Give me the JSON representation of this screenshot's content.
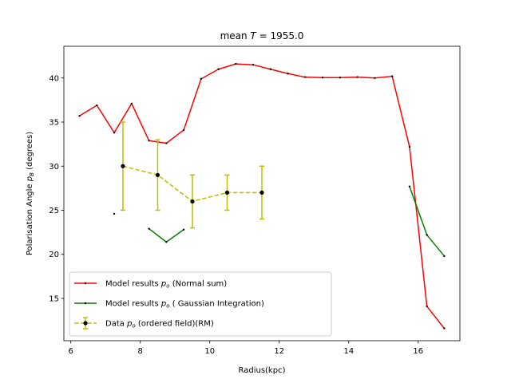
{
  "chart_data": {
    "type": "line",
    "title": "mean T =  1955.0",
    "title_parts": {
      "prefix": "mean ",
      "var": "T",
      "suffix": " =  1955.0"
    },
    "xlabel": "Radius(kpc)",
    "ylabel_parts": {
      "prefix": "Polarisation Angle ",
      "var": "p",
      "sub": "B",
      "suffix": " (degrees)"
    },
    "xlim": [
      5.8,
      17.2
    ],
    "ylim": [
      10.2,
      43.6
    ],
    "xticks": [
      6,
      8,
      10,
      12,
      14,
      16
    ],
    "yticks": [
      15,
      20,
      25,
      30,
      35,
      40
    ],
    "legend_position": "lower-left",
    "series": [
      {
        "name": "Model results p_o (Normal sum)",
        "legend_parts": {
          "prefix": "Model results ",
          "var": "p",
          "sub": "o",
          "suffix": " (Normal sum)"
        },
        "color": "#ff0000",
        "style": "solid",
        "segments": [
          [
            [
              6.25,
              35.7
            ],
            [
              6.75,
              36.9
            ],
            [
              7.25,
              33.8
            ],
            [
              7.75,
              37.1
            ],
            [
              8.25,
              32.9
            ],
            [
              8.75,
              32.6
            ],
            [
              9.25,
              34.1
            ],
            [
              9.75,
              39.9
            ],
            [
              10.25,
              41.0
            ],
            [
              10.75,
              41.6
            ],
            [
              11.25,
              41.5
            ],
            [
              11.75,
              41.0
            ],
            [
              12.25,
              40.5
            ],
            [
              12.75,
              40.1
            ],
            [
              13.25,
              40.05
            ],
            [
              13.75,
              40.05
            ],
            [
              14.25,
              40.1
            ],
            [
              14.75,
              40.0
            ],
            [
              15.25,
              40.2
            ],
            [
              15.75,
              32.2
            ],
            [
              16.25,
              14.1
            ],
            [
              16.75,
              11.6
            ]
          ]
        ]
      },
      {
        "name": "Model results p_o ( Gaussian Integration)",
        "legend_parts": {
          "prefix": "Model results ",
          "var": "p",
          "sub": "o",
          "suffix": " ( Gaussian Integration)"
        },
        "color": "#008000",
        "style": "solid",
        "segments": [
          [
            [
              7.25,
              24.6
            ]
          ],
          [
            [
              8.25,
              22.9
            ],
            [
              8.75,
              21.4
            ],
            [
              9.25,
              22.8
            ]
          ],
          [
            [
              15.75,
              27.7
            ],
            [
              16.25,
              22.2
            ],
            [
              16.75,
              19.8
            ]
          ]
        ]
      },
      {
        "name": "Data p_o (ordered field)(RM)",
        "legend_parts": {
          "prefix": "Data ",
          "var": "p",
          "sub": "o",
          "suffix": " (ordered field)(RM)"
        },
        "color": "#bfbf00",
        "style": "dashed",
        "points": [
          {
            "x": 7.5,
            "y": 30,
            "err": 5
          },
          {
            "x": 8.5,
            "y": 29,
            "err": 4
          },
          {
            "x": 9.5,
            "y": 26,
            "err": 3
          },
          {
            "x": 10.5,
            "y": 27,
            "err": 2
          },
          {
            "x": 11.5,
            "y": 27,
            "err": 3
          }
        ]
      }
    ]
  }
}
